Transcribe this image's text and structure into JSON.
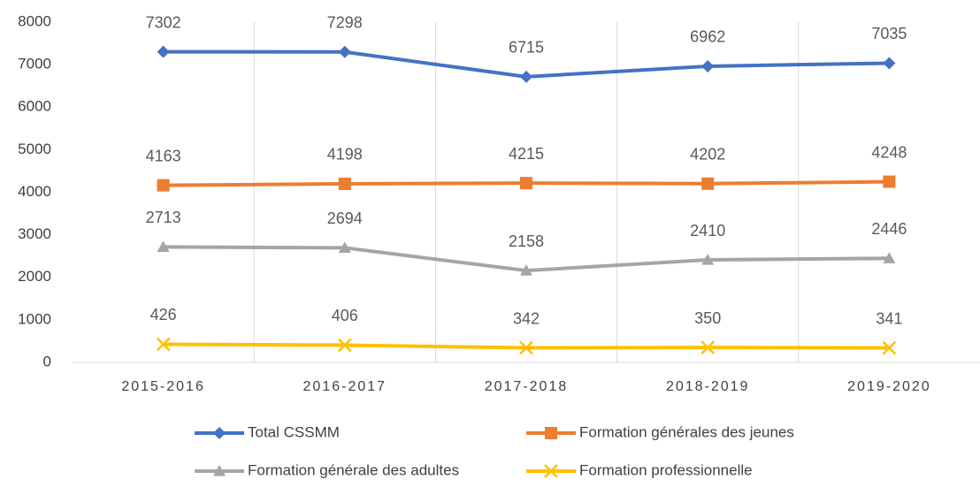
{
  "chart_data": {
    "type": "line",
    "categories": [
      "2015-2016",
      "2016-2017",
      "2017-2018",
      "2018-2019",
      "2019-2020"
    ],
    "series": [
      {
        "name": "Total CSSMM",
        "color": "#4472c4",
        "marker": "diamond",
        "values": [
          7302,
          7298,
          6715,
          6962,
          7035
        ]
      },
      {
        "name": "Formation générales des jeunes",
        "color": "#ed7d31",
        "marker": "square",
        "values": [
          4163,
          4198,
          4215,
          4202,
          4248
        ]
      },
      {
        "name": "Formation générale des adultes",
        "color": "#a5a5a5",
        "marker": "triangle",
        "values": [
          2713,
          2694,
          2158,
          2410,
          2446
        ]
      },
      {
        "name": "Formation professionnelle",
        "color": "#ffc000",
        "marker": "x",
        "values": [
          426,
          406,
          342,
          350,
          341
        ]
      }
    ],
    "ylim": [
      0,
      8000
    ],
    "yticks": [
      0,
      1000,
      2000,
      3000,
      4000,
      5000,
      6000,
      7000,
      8000
    ],
    "data_labels": true,
    "legend": "bottom"
  }
}
